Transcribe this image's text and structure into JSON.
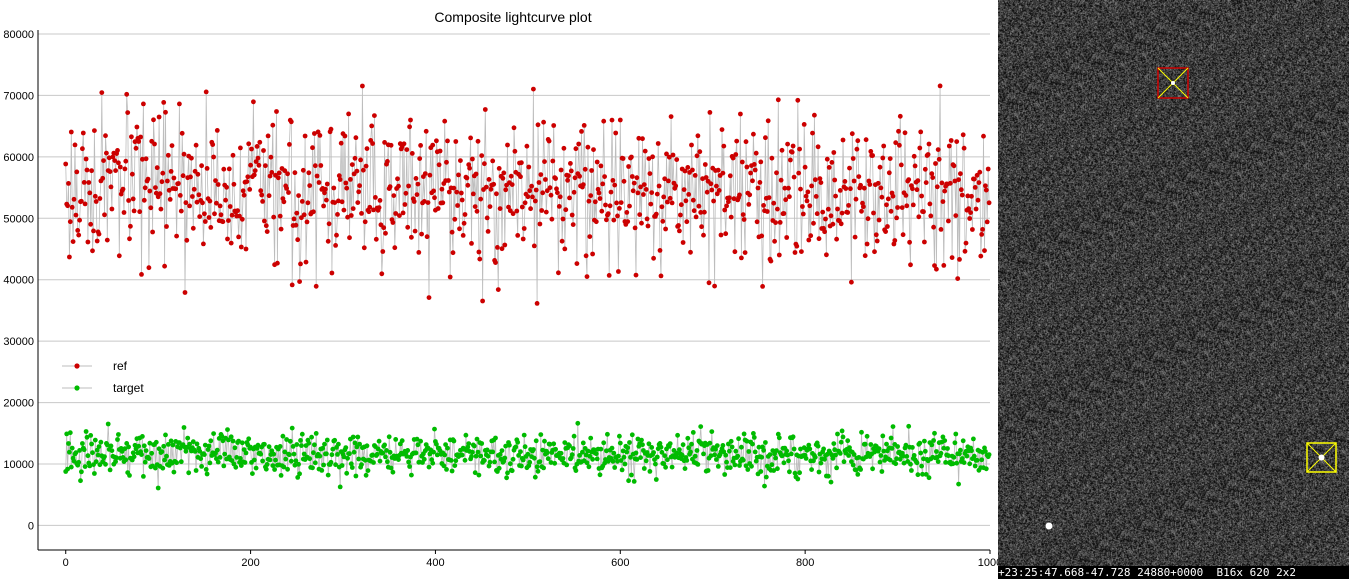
{
  "chart_data": {
    "type": "line",
    "title": "Composite lightcurve plot",
    "xlabel": "",
    "ylabel": "",
    "xlim": [
      -30,
      1000
    ],
    "ylim": [
      -4000,
      80000
    ],
    "x_ticks": [
      "0",
      "200",
      "400",
      "600",
      "800",
      "1000"
    ],
    "x_tick_values": [
      0,
      200,
      400,
      600,
      800,
      1000
    ],
    "y_ticks": [
      "0",
      "10000",
      "20000",
      "30000",
      "40000",
      "50000",
      "60000",
      "70000",
      "80000"
    ],
    "y_tick_values": [
      0,
      10000,
      20000,
      30000,
      40000,
      50000,
      60000,
      70000,
      80000
    ],
    "grid": "horizontal",
    "legend_position": "left",
    "n_points": 1000,
    "series": [
      {
        "name": "ref",
        "color": "#cc0000",
        "mean": 54500,
        "spread": 8000,
        "min": 34800,
        "max": 76700,
        "seed": 17
      },
      {
        "name": "target",
        "color": "#00bb00",
        "mean": 11500,
        "spread": 2300,
        "min": 5800,
        "max": 17300,
        "seed": 91
      }
    ]
  },
  "image_view": {
    "status_text": "+23:25:47.668-47.728 24880+0000  B16x 620 2x2",
    "markers": [
      {
        "name": "ref-marker",
        "color": "#cc0000"
      },
      {
        "name": "target-marker",
        "color": "#ffff00"
      }
    ]
  }
}
